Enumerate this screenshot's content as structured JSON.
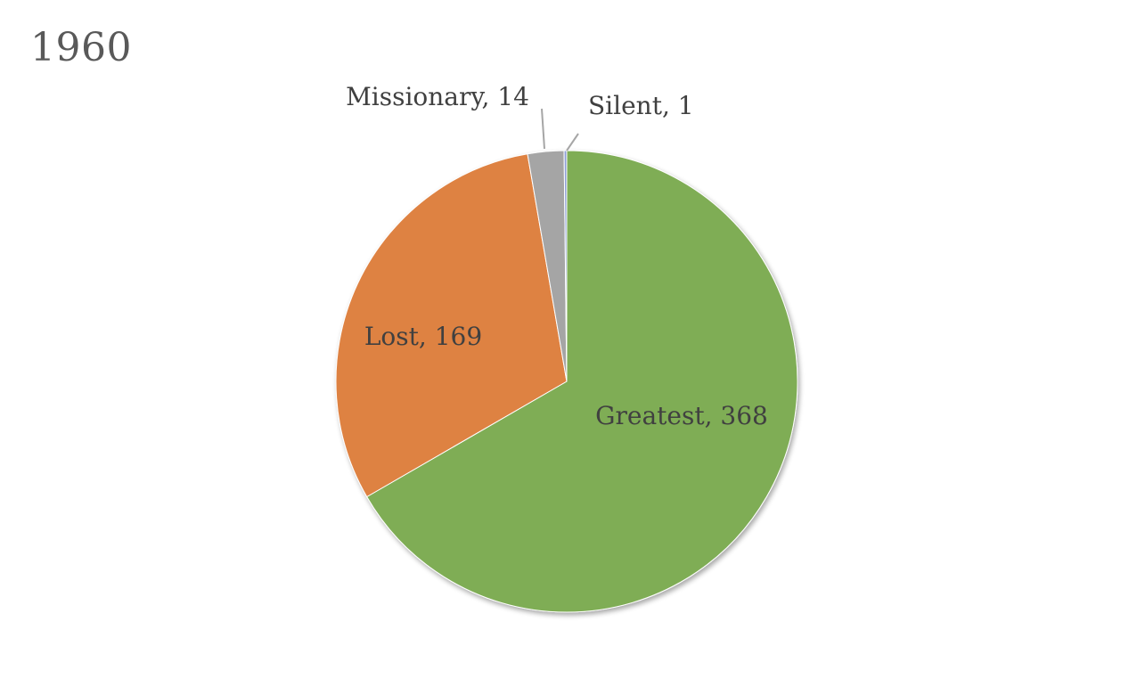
{
  "chart_data": {
    "type": "pie",
    "title": "1960",
    "slices": [
      {
        "label": "Greatest",
        "value": 368,
        "color": "#7FAD55",
        "data_label": "Greatest, 368"
      },
      {
        "label": "Lost",
        "value": 169,
        "color": "#DE8243",
        "data_label": "Lost, 169"
      },
      {
        "label": "Missionary",
        "value": 14,
        "color": "#A5A5A5",
        "data_label": "Missionary, 14"
      },
      {
        "label": "Silent",
        "value": 1,
        "color": "#8E9FD6",
        "data_label": "Silent, 1"
      }
    ],
    "start_angle": "12 o'clock",
    "direction": "clockwise",
    "legend": "none",
    "label_text_color": "#404040",
    "leader_line_color": "#A6A6A6"
  }
}
